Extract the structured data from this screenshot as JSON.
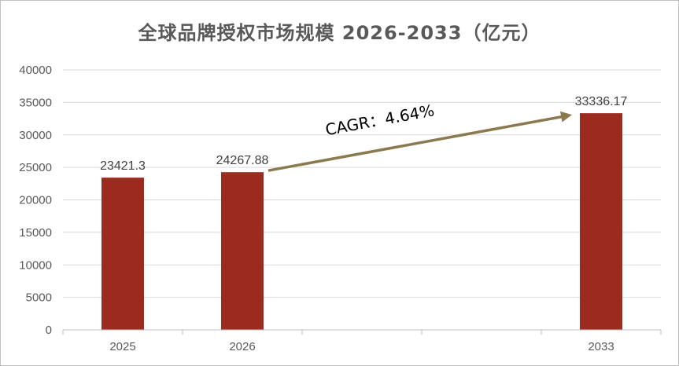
{
  "chart_data": {
    "type": "bar",
    "title": "全球品牌授权市场规模 2026-2033（亿元）",
    "categories": [
      "2025",
      "2026",
      "",
      "",
      "2033"
    ],
    "values": [
      23421.3,
      24267.88,
      null,
      null,
      33336.17
    ],
    "data_labels": [
      "23421.3",
      "24267.88",
      "",
      "",
      "33336.17"
    ],
    "ylim": [
      0,
      40000
    ],
    "y_ticks": [
      "0",
      "5000",
      "10000",
      "15000",
      "20000",
      "25000",
      "30000",
      "35000",
      "40000"
    ],
    "grid": true,
    "legend": "none",
    "bar_color": "#9b2b1f",
    "annotation": {
      "text": "CAGR：4.64%",
      "from_category": "2026",
      "to_category": "2033",
      "arrow_color": "#8b7a4f"
    }
  }
}
